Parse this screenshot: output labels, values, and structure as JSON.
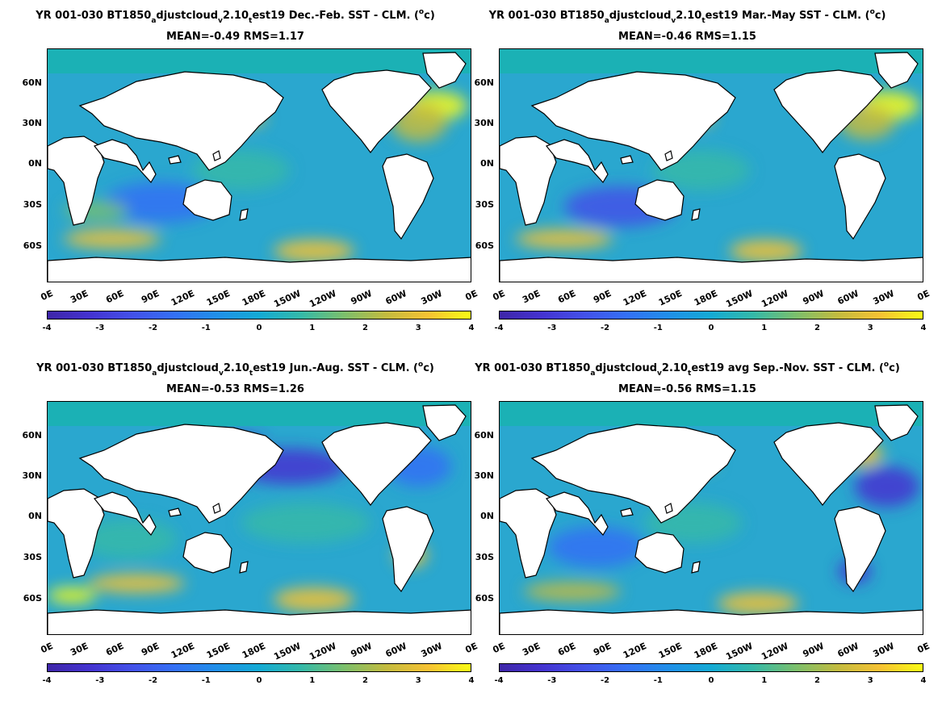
{
  "panels": [
    {
      "title_pre": "YR 001-030 BT1850",
      "title_sub1": "a",
      "title_mid1": "djustcloud",
      "title_sub2": "v",
      "title_mid2": "2.10",
      "title_sub3": "t",
      "title_post": "est19  Dec.-Feb. SST - CLM. (",
      "title_sup": "o",
      "title_end": "c)",
      "stats": "MEAN=-0.49   RMS=1.17"
    },
    {
      "title_pre": "YR 001-030 BT1850",
      "title_sub1": "a",
      "title_mid1": "djustcloud",
      "title_sub2": "v",
      "title_mid2": "2.10",
      "title_sub3": "t",
      "title_post": "est19 Mar.-May SST - CLM. (",
      "title_sup": "o",
      "title_end": "c)",
      "stats": "MEAN=-0.46   RMS=1.15"
    },
    {
      "title_pre": "YR 001-030 BT1850",
      "title_sub1": "a",
      "title_mid1": "djustcloud",
      "title_sub2": "v",
      "title_mid2": "2.10",
      "title_sub3": "t",
      "title_post": "est19 Jun.-Aug. SST - CLM. (",
      "title_sup": "o",
      "title_end": "c)",
      "stats": "MEAN=-0.53   RMS=1.26"
    },
    {
      "title_pre": "YR 001-030 BT1850",
      "title_sub1": "a",
      "title_mid1": "djustcloud",
      "title_sub2": "v",
      "title_mid2": "2.10",
      "title_sub3": "t",
      "title_post": "est19 avg Sep.-Nov. SST - CLM. (",
      "title_sup": "o",
      "title_end": "c)",
      "stats": "MEAN=-0.56   RMS=1.15"
    }
  ],
  "lat_labels": [
    "60N",
    "30N",
    "0N",
    "30S",
    "60S"
  ],
  "lon_labels": [
    "0E",
    "30E",
    "60E",
    "90E",
    "120E",
    "150E",
    "180E",
    "150W",
    "120W",
    "90W",
    "60W",
    "30W",
    "0E"
  ],
  "colorbar_ticks": [
    "-4",
    "-3",
    "-2",
    "-1",
    "0",
    "1",
    "2",
    "3",
    "4"
  ],
  "colors": {
    "ocean_base": "#2aa7cf",
    "land": "#ffffff",
    "arctic": "#19b3b0"
  }
}
